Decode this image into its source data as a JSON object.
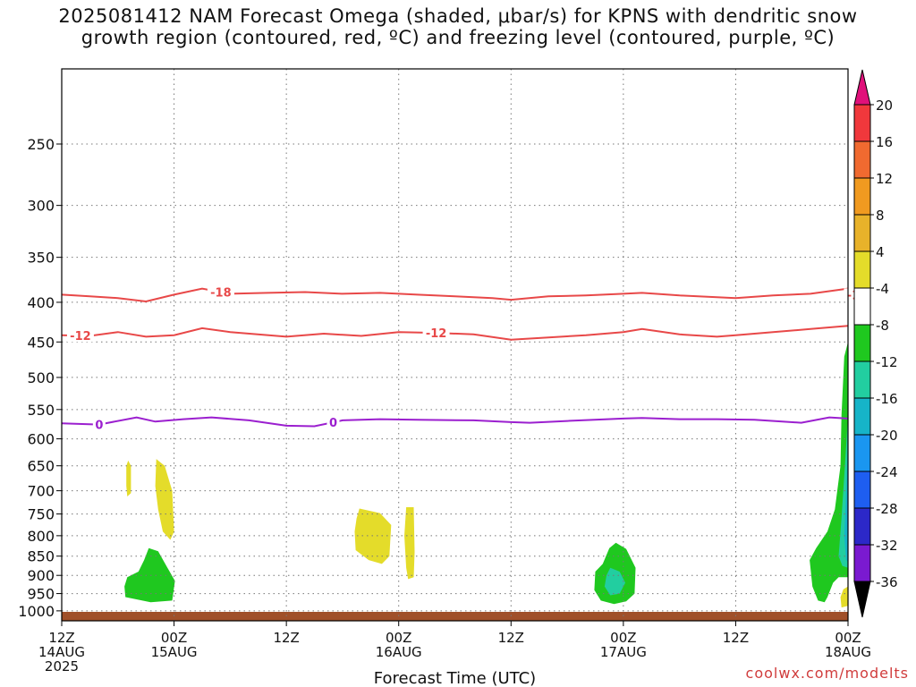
{
  "chart_data": {
    "type": "heatmap",
    "title_lines": [
      "2025081412 NAM Forecast Omega (shaded, μbar/s) for KPNS with dendritic snow",
      "growth region (contoured, red, ºC) and freezing level (contoured, purple, ºC)"
    ],
    "xlabel": "Forecast Time (UTC)",
    "ylabel": "",
    "x_ticks": [
      {
        "h": 0,
        "lines": [
          "12Z",
          "14AUG",
          "2025"
        ]
      },
      {
        "h": 12,
        "lines": [
          "00Z",
          "15AUG"
        ]
      },
      {
        "h": 24,
        "lines": [
          "12Z"
        ]
      },
      {
        "h": 36,
        "lines": [
          "00Z",
          "16AUG"
        ]
      },
      {
        "h": 48,
        "lines": [
          "12Z"
        ]
      },
      {
        "h": 60,
        "lines": [
          "00Z",
          "17AUG"
        ]
      },
      {
        "h": 72,
        "lines": [
          "12Z"
        ]
      },
      {
        "h": 84,
        "lines": [
          "00Z",
          "18AUG"
        ]
      }
    ],
    "xlim": [
      0,
      84
    ],
    "y_ticks": [
      250,
      300,
      350,
      400,
      450,
      500,
      550,
      600,
      650,
      700,
      750,
      800,
      850,
      900,
      950,
      1000
    ],
    "ylim": [
      200,
      1030
    ],
    "y_scale": "log-pressure",
    "grid": true,
    "contours": [
      {
        "label": "-18",
        "color": "#e84848",
        "points": [
          [
            0,
            391
          ],
          [
            3,
            393
          ],
          [
            6,
            395
          ],
          [
            9,
            399
          ],
          [
            12,
            391
          ],
          [
            15,
            384
          ],
          [
            18,
            390
          ],
          [
            22,
            389
          ],
          [
            26,
            388
          ],
          [
            30,
            390
          ],
          [
            34,
            389
          ],
          [
            38,
            391
          ],
          [
            42,
            393
          ],
          [
            46,
            395
          ],
          [
            48,
            397
          ],
          [
            52,
            393
          ],
          [
            56,
            392
          ],
          [
            60,
            390
          ],
          [
            62,
            389
          ],
          [
            66,
            392
          ],
          [
            70,
            394
          ],
          [
            72,
            395
          ],
          [
            76,
            392
          ],
          [
            80,
            390
          ],
          [
            84,
            384
          ]
        ],
        "label_at": [
          17,
          69,
          85,
          140,
          168,
          220,
          255,
          311
        ]
      },
      {
        "label": "-12",
        "color": "#e84848",
        "points": [
          [
            0,
            441
          ],
          [
            3,
            442
          ],
          [
            6,
            437
          ],
          [
            9,
            443
          ],
          [
            12,
            441
          ],
          [
            15,
            432
          ],
          [
            18,
            437
          ],
          [
            24,
            443
          ],
          [
            28,
            439
          ],
          [
            32,
            442
          ],
          [
            36,
            437
          ],
          [
            40,
            438
          ],
          [
            44,
            440
          ],
          [
            48,
            447
          ],
          [
            52,
            444
          ],
          [
            56,
            441
          ],
          [
            60,
            437
          ],
          [
            62,
            433
          ],
          [
            66,
            440
          ],
          [
            70,
            443
          ],
          [
            72,
            441
          ],
          [
            76,
            437
          ],
          [
            80,
            433
          ],
          [
            84,
            429
          ]
        ],
        "label_at": [
          2,
          27,
          40,
          78,
          134,
          180,
          300,
          325
        ]
      },
      {
        "label": "0",
        "color": "#9b1fcf",
        "points": [
          [
            0,
            573
          ],
          [
            4,
            575
          ],
          [
            8,
            563
          ],
          [
            10,
            570
          ],
          [
            13,
            566
          ],
          [
            16,
            563
          ],
          [
            20,
            568
          ],
          [
            24,
            577
          ],
          [
            27,
            578
          ],
          [
            30,
            568
          ],
          [
            34,
            566
          ],
          [
            38,
            567
          ],
          [
            44,
            568
          ],
          [
            48,
            571
          ],
          [
            50,
            572
          ],
          [
            54,
            569
          ],
          [
            60,
            565
          ],
          [
            62,
            564
          ],
          [
            66,
            566
          ],
          [
            70,
            566
          ],
          [
            74,
            567
          ],
          [
            79,
            572
          ],
          [
            82,
            563
          ],
          [
            84,
            565
          ]
        ],
        "label_at": [
          4,
          30,
          29,
          100,
          155,
          225
        ]
      }
    ],
    "shaded_regions": [
      {
        "value_range": [
          4,
          8
        ],
        "color": "#e4dc2a",
        "points": [
          [
            7.1,
            640
          ],
          [
            7.4,
            650
          ],
          [
            7.4,
            705
          ],
          [
            7.0,
            712
          ],
          [
            6.9,
            690
          ],
          [
            6.9,
            650
          ]
        ]
      },
      {
        "value_range": [
          4,
          8
        ],
        "color": "#e4dc2a",
        "points": [
          [
            10.1,
            637
          ],
          [
            11.0,
            650
          ],
          [
            11.8,
            700
          ],
          [
            12.0,
            790
          ],
          [
            11.6,
            810
          ],
          [
            10.8,
            790
          ],
          [
            10.3,
            740
          ],
          [
            10.0,
            690
          ]
        ]
      },
      {
        "value_range": [
          4,
          8
        ],
        "color": "#e4dc2a",
        "points": [
          [
            31.8,
            738
          ],
          [
            34.0,
            748
          ],
          [
            35.2,
            775
          ],
          [
            35.0,
            850
          ],
          [
            34.2,
            870
          ],
          [
            32.8,
            860
          ],
          [
            31.4,
            835
          ],
          [
            31.3,
            790
          ],
          [
            31.5,
            760
          ]
        ]
      },
      {
        "value_range": [
          4,
          8
        ],
        "color": "#e4dc2a",
        "points": [
          [
            36.8,
            735
          ],
          [
            37.6,
            735
          ],
          [
            37.7,
            840
          ],
          [
            37.6,
            905
          ],
          [
            37.0,
            910
          ],
          [
            36.8,
            880
          ],
          [
            36.6,
            800
          ]
        ]
      },
      {
        "value_range": [
          -8,
          -4
        ],
        "color": "#1fc81f",
        "points": [
          [
            9.3,
            830
          ],
          [
            10.3,
            838
          ],
          [
            11.3,
            880
          ],
          [
            12.1,
            915
          ],
          [
            11.8,
            970
          ],
          [
            9.5,
            975
          ],
          [
            6.8,
            960
          ],
          [
            6.7,
            930
          ],
          [
            7.0,
            905
          ],
          [
            8.2,
            890
          ],
          [
            8.8,
            860
          ]
        ]
      },
      {
        "value_range": [
          -8,
          -4
        ],
        "color": "#1fc81f",
        "points": [
          [
            59.2,
            817
          ],
          [
            60.3,
            832
          ],
          [
            61.3,
            880
          ],
          [
            61.2,
            950
          ],
          [
            60.3,
            972
          ],
          [
            59.0,
            980
          ],
          [
            57.6,
            970
          ],
          [
            56.9,
            940
          ],
          [
            57.0,
            890
          ],
          [
            57.8,
            870
          ],
          [
            58.5,
            830
          ]
        ]
      },
      {
        "value_range": [
          -12,
          -8
        ],
        "color": "#22cea0",
        "points": [
          [
            58.6,
            880
          ],
          [
            59.6,
            890
          ],
          [
            60.2,
            920
          ],
          [
            59.6,
            950
          ],
          [
            58.6,
            955
          ],
          [
            58.0,
            930
          ],
          [
            58.2,
            900
          ]
        ]
      },
      {
        "value_range": [
          -8,
          -4
        ],
        "color": "#1fc81f",
        "points": [
          [
            84,
            450
          ],
          [
            83.6,
            470
          ],
          [
            83.3,
            560
          ],
          [
            83.2,
            650
          ],
          [
            82.6,
            740
          ],
          [
            81.8,
            790
          ],
          [
            80.6,
            830
          ],
          [
            79.9,
            860
          ],
          [
            80.2,
            930
          ],
          [
            80.8,
            970
          ],
          [
            81.5,
            975
          ],
          [
            81.8,
            960
          ],
          [
            82.4,
            920
          ],
          [
            83.0,
            905
          ],
          [
            84,
            905
          ]
        ]
      },
      {
        "value_range": [
          4,
          8
        ],
        "color": "#e4dc2a",
        "points": [
          [
            83.5,
            938
          ],
          [
            84,
            930
          ],
          [
            84,
            985
          ],
          [
            83.3,
            990
          ],
          [
            83.2,
            960
          ]
        ]
      },
      {
        "value_range": [
          -12,
          -8
        ],
        "color": "#22cea0",
        "points": [
          [
            84,
            560
          ],
          [
            83.7,
            640
          ],
          [
            83.3,
            760
          ],
          [
            83.0,
            850
          ],
          [
            83.4,
            875
          ],
          [
            84,
            880
          ]
        ]
      },
      {
        "value_range": [
          -16,
          -12
        ],
        "color": "#16b4c8",
        "points": [
          [
            84,
            600
          ],
          [
            83.8,
            700
          ],
          [
            83.6,
            800
          ],
          [
            83.8,
            860
          ],
          [
            84,
            865
          ]
        ]
      },
      {
        "value_range": [
          -20,
          -16
        ],
        "color": "#1a96f0",
        "points": [
          [
            84,
            650
          ],
          [
            83.9,
            760
          ],
          [
            84,
            845
          ]
        ]
      }
    ],
    "terrain_fill": {
      "color": "#a0502a",
      "top_pressure": 1003
    },
    "colorbar": {
      "labels": [
        "20",
        "16",
        "12",
        "8",
        "4",
        "-4",
        "-8",
        "-12",
        "-16",
        "-20",
        "-24",
        "-28",
        "-32",
        "-36"
      ],
      "colors": [
        "#e0107a",
        "#f0383c",
        "#f06a30",
        "#f09a20",
        "#e8b22a",
        "#e4dc2a",
        "#ffffff",
        "#1fc81f",
        "#22cea0",
        "#16b4c8",
        "#1a96f0",
        "#1e5ef0",
        "#2c28c8",
        "#7a1ad0",
        "#a00ec8",
        "#a8a8a8",
        "#000000"
      ]
    }
  },
  "credit": "coolwx.com/modelts"
}
